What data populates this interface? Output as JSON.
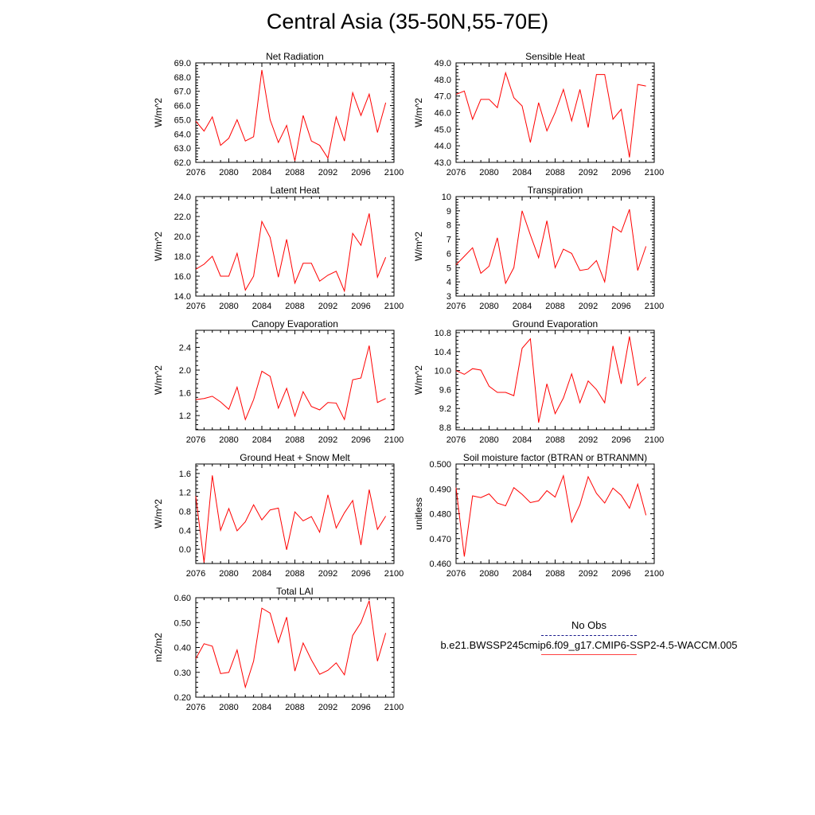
{
  "title": "Central Asia (35-50N,55-70E)",
  "legend": {
    "obs_label": "No Obs",
    "obs_color": "#1a1a8c",
    "case_label": "b.e21.BWSSP245cmip6.f09_g17.CMIP6-SSP2-4.5-WACCM.005",
    "case_color": "#ff0000"
  },
  "chart_data": [
    {
      "type": "line",
      "title": "Net Radiation",
      "ylabel": "W/m^2",
      "xlim": [
        2076,
        2100
      ],
      "ylim": [
        62.0,
        69.0
      ],
      "xticks": [
        "2076",
        "2080",
        "2084",
        "2088",
        "2092",
        "2096",
        "2100"
      ],
      "yticks": [
        "62.0",
        "63.0",
        "64.0",
        "65.0",
        "66.0",
        "67.0",
        "68.0",
        "69.0"
      ],
      "x": [
        2076,
        2077,
        2078,
        2079,
        2080,
        2081,
        2082,
        2083,
        2084,
        2085,
        2086,
        2087,
        2088,
        2089,
        2090,
        2091,
        2092,
        2093,
        2094,
        2095,
        2096,
        2097,
        2098,
        2099
      ],
      "series": [
        {
          "color": "#ff0000",
          "values": [
            64.9,
            64.2,
            65.2,
            63.2,
            63.7,
            65.0,
            63.5,
            63.8,
            68.5,
            65.0,
            63.4,
            64.6,
            62.1,
            65.3,
            63.5,
            63.2,
            62.3,
            65.2,
            63.5,
            66.9,
            65.3,
            66.8,
            64.1,
            66.2
          ]
        }
      ]
    },
    {
      "type": "line",
      "title": "Sensible Heat",
      "ylabel": "W/m^2",
      "xlim": [
        2076,
        2100
      ],
      "ylim": [
        43.0,
        49.0
      ],
      "xticks": [
        "2076",
        "2080",
        "2084",
        "2088",
        "2092",
        "2096",
        "2100"
      ],
      "yticks": [
        "43.0",
        "44.0",
        "45.0",
        "46.0",
        "47.0",
        "48.0",
        "49.0"
      ],
      "x": [
        2076,
        2077,
        2078,
        2079,
        2080,
        2081,
        2082,
        2083,
        2084,
        2085,
        2086,
        2087,
        2088,
        2089,
        2090,
        2091,
        2092,
        2093,
        2094,
        2095,
        2096,
        2097,
        2098,
        2099
      ],
      "series": [
        {
          "color": "#ff0000",
          "values": [
            47.1,
            47.3,
            45.6,
            46.8,
            46.8,
            46.3,
            48.4,
            46.9,
            46.4,
            44.2,
            46.6,
            44.9,
            46.0,
            47.4,
            45.5,
            47.4,
            45.1,
            48.3,
            48.3,
            45.6,
            46.2,
            43.3,
            47.7,
            47.6
          ]
        }
      ]
    },
    {
      "type": "line",
      "title": "Latent Heat",
      "ylabel": "W/m^2",
      "xlim": [
        2076,
        2100
      ],
      "ylim": [
        14.0,
        24.0
      ],
      "xticks": [
        "2076",
        "2080",
        "2084",
        "2088",
        "2092",
        "2096",
        "2100"
      ],
      "yticks": [
        "14.0",
        "16.0",
        "18.0",
        "20.0",
        "22.0",
        "24.0"
      ],
      "x": [
        2076,
        2077,
        2078,
        2079,
        2080,
        2081,
        2082,
        2083,
        2084,
        2085,
        2086,
        2087,
        2088,
        2089,
        2090,
        2091,
        2092,
        2093,
        2094,
        2095,
        2096,
        2097,
        2098,
        2099
      ],
      "series": [
        {
          "color": "#ff0000",
          "values": [
            16.7,
            17.2,
            18.0,
            16.0,
            16.0,
            18.3,
            14.6,
            16.0,
            21.5,
            19.9,
            15.9,
            19.7,
            15.3,
            17.3,
            17.3,
            15.5,
            16.1,
            16.5,
            14.5,
            20.3,
            19.1,
            22.3,
            15.9,
            17.9
          ]
        }
      ]
    },
    {
      "type": "line",
      "title": "Transpiration",
      "ylabel": "W/m^2",
      "xlim": [
        2076,
        2100
      ],
      "ylim": [
        3,
        10
      ],
      "xticks": [
        "2076",
        "2080",
        "2084",
        "2088",
        "2092",
        "2096",
        "2100"
      ],
      "yticks": [
        "3",
        "4",
        "5",
        "6",
        "7",
        "8",
        "9",
        "10"
      ],
      "x": [
        2076,
        2077,
        2078,
        2079,
        2080,
        2081,
        2082,
        2083,
        2084,
        2085,
        2086,
        2087,
        2088,
        2089,
        2090,
        2091,
        2092,
        2093,
        2094,
        2095,
        2096,
        2097,
        2098,
        2099
      ],
      "series": [
        {
          "color": "#ff0000",
          "values": [
            5.2,
            5.8,
            6.4,
            4.6,
            5.1,
            7.1,
            3.9,
            5.0,
            9.0,
            7.3,
            5.7,
            8.3,
            5.0,
            6.3,
            6.0,
            4.8,
            4.9,
            5.5,
            4.0,
            7.9,
            7.5,
            9.1,
            4.8,
            6.5
          ]
        }
      ]
    },
    {
      "type": "line",
      "title": "Canopy Evaporation",
      "ylabel": "W/m^2",
      "xlim": [
        2076,
        2100
      ],
      "ylim": [
        0.95,
        2.7
      ],
      "xticks": [
        "2076",
        "2080",
        "2084",
        "2088",
        "2092",
        "2096",
        "2100"
      ],
      "yticks": [
        "1.2",
        "1.6",
        "2.0",
        "2.4"
      ],
      "x": [
        2076,
        2077,
        2078,
        2079,
        2080,
        2081,
        2082,
        2083,
        2084,
        2085,
        2086,
        2087,
        2088,
        2089,
        2090,
        2091,
        2092,
        2093,
        2094,
        2095,
        2096,
        2097,
        2098,
        2099
      ],
      "series": [
        {
          "color": "#ff0000",
          "values": [
            1.48,
            1.5,
            1.54,
            1.44,
            1.31,
            1.7,
            1.13,
            1.48,
            1.98,
            1.89,
            1.33,
            1.68,
            1.19,
            1.62,
            1.36,
            1.3,
            1.43,
            1.42,
            1.13,
            1.83,
            1.86,
            2.43,
            1.43,
            1.5
          ]
        }
      ]
    },
    {
      "type": "line",
      "title": "Ground Evaporation",
      "ylabel": "W/m^2",
      "xlim": [
        2076,
        2100
      ],
      "ylim": [
        8.75,
        10.85
      ],
      "xticks": [
        "2076",
        "2080",
        "2084",
        "2088",
        "2092",
        "2096",
        "2100"
      ],
      "yticks": [
        "8.8",
        "9.2",
        "9.6",
        "10.0",
        "10.4",
        "10.8"
      ],
      "x": [
        2076,
        2077,
        2078,
        2079,
        2080,
        2081,
        2082,
        2083,
        2084,
        2085,
        2086,
        2087,
        2088,
        2089,
        2090,
        2091,
        2092,
        2093,
        2094,
        2095,
        2096,
        2097,
        2098,
        2099
      ],
      "series": [
        {
          "color": "#ff0000",
          "values": [
            10.0,
            9.92,
            10.04,
            10.01,
            9.67,
            9.54,
            9.54,
            9.47,
            10.47,
            10.67,
            8.9,
            9.72,
            9.09,
            9.42,
            9.93,
            9.32,
            9.78,
            9.6,
            9.32,
            10.52,
            9.72,
            10.72,
            9.69,
            9.86
          ]
        }
      ]
    },
    {
      "type": "line",
      "title": "Ground Heat + Snow Melt",
      "ylabel": "W/m^2",
      "xlim": [
        2076,
        2100
      ],
      "ylim": [
        -0.3,
        1.8
      ],
      "xticks": [
        "2076",
        "2080",
        "2084",
        "2088",
        "2092",
        "2096",
        "2100"
      ],
      "yticks": [
        "0.0",
        "0.4",
        "0.8",
        "1.2",
        "1.6"
      ],
      "x": [
        2076,
        2077,
        2078,
        2079,
        2080,
        2081,
        2082,
        2083,
        2084,
        2085,
        2086,
        2087,
        2088,
        2089,
        2090,
        2091,
        2092,
        2093,
        2094,
        2095,
        2096,
        2097,
        2098,
        2099
      ],
      "series": [
        {
          "color": "#ff0000",
          "values": [
            1.12,
            -0.28,
            1.56,
            0.4,
            0.86,
            0.39,
            0.58,
            0.94,
            0.62,
            0.83,
            0.87,
            -0.01,
            0.79,
            0.6,
            0.69,
            0.36,
            1.15,
            0.45,
            0.77,
            1.03,
            0.09,
            1.26,
            0.42,
            0.7
          ]
        }
      ]
    },
    {
      "type": "line",
      "title": "Soil moisture factor (BTRAN or BTRANMN)",
      "ylabel": "unitless",
      "xlim": [
        2076,
        2100
      ],
      "ylim": [
        0.46,
        0.5
      ],
      "xticks": [
        "2076",
        "2080",
        "2084",
        "2088",
        "2092",
        "2096",
        "2100"
      ],
      "yticks": [
        "0.460",
        "0.470",
        "0.480",
        "0.490",
        "0.500"
      ],
      "x": [
        2076,
        2077,
        2078,
        2079,
        2080,
        2081,
        2082,
        2083,
        2084,
        2085,
        2086,
        2087,
        2088,
        2089,
        2090,
        2091,
        2092,
        2093,
        2094,
        2095,
        2096,
        2097,
        2098,
        2099
      ],
      "series": [
        {
          "color": "#ff0000",
          "values": [
            0.4905,
            0.4628,
            0.4872,
            0.4865,
            0.488,
            0.4843,
            0.4832,
            0.4905,
            0.4878,
            0.4845,
            0.4852,
            0.4893,
            0.4867,
            0.4953,
            0.4766,
            0.4836,
            0.4949,
            0.4882,
            0.4843,
            0.4903,
            0.4874,
            0.4822,
            0.4919,
            0.4794
          ]
        }
      ]
    },
    {
      "type": "line",
      "title": "Total LAI",
      "ylabel": "m2/m2",
      "xlim": [
        2076,
        2100
      ],
      "ylim": [
        0.2,
        0.6
      ],
      "xticks": [
        "2076",
        "2080",
        "2084",
        "2088",
        "2092",
        "2096",
        "2100"
      ],
      "yticks": [
        "0.20",
        "0.30",
        "0.40",
        "0.50",
        "0.60"
      ],
      "x": [
        2076,
        2077,
        2078,
        2079,
        2080,
        2081,
        2082,
        2083,
        2084,
        2085,
        2086,
        2087,
        2088,
        2089,
        2090,
        2091,
        2092,
        2093,
        2094,
        2095,
        2096,
        2097,
        2098,
        2099
      ],
      "series": [
        {
          "color": "#ff0000",
          "values": [
            0.355,
            0.415,
            0.405,
            0.295,
            0.3,
            0.39,
            0.24,
            0.345,
            0.558,
            0.538,
            0.42,
            0.522,
            0.305,
            0.418,
            0.35,
            0.292,
            0.308,
            0.338,
            0.29,
            0.448,
            0.5,
            0.588,
            0.345,
            0.458
          ]
        }
      ]
    }
  ]
}
